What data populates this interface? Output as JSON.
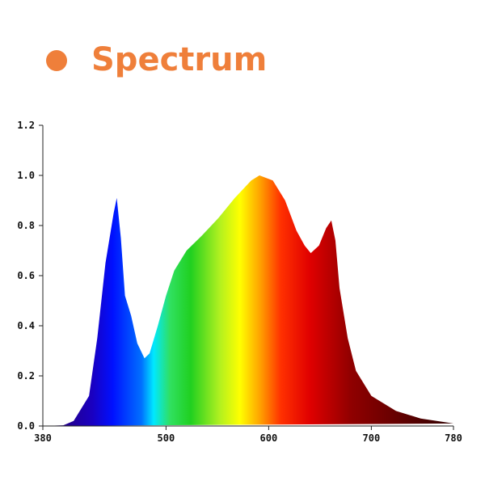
{
  "chart_data": {
    "type": "area",
    "title": "Spectrum",
    "x": [
      380,
      400,
      410,
      425,
      433,
      441,
      449,
      452,
      456,
      460,
      466,
      472,
      479,
      484,
      492,
      500,
      508,
      520,
      535,
      551,
      567,
      583,
      591,
      604,
      616,
      627,
      635,
      641,
      649,
      656,
      661,
      665,
      669,
      677,
      685,
      700,
      724,
      748,
      780
    ],
    "values": [
      0,
      0.003,
      0.02,
      0.12,
      0.35,
      0.65,
      0.85,
      0.91,
      0.75,
      0.52,
      0.44,
      0.33,
      0.27,
      0.29,
      0.4,
      0.52,
      0.62,
      0.7,
      0.76,
      0.83,
      0.91,
      0.98,
      1.0,
      0.98,
      0.9,
      0.78,
      0.72,
      0.69,
      0.72,
      0.79,
      0.82,
      0.74,
      0.55,
      0.35,
      0.22,
      0.12,
      0.06,
      0.03,
      0.01
    ],
    "xlim": [
      380,
      780
    ],
    "xticks": [
      380,
      500,
      600,
      700,
      780
    ],
    "ylim": [
      0,
      1.2
    ],
    "yticks": [
      {
        "value": 0,
        "label": "0.0"
      },
      0.2,
      0.4,
      0.6,
      0.8,
      {
        "value": 1,
        "label": "1.0"
      },
      1.2
    ]
  }
}
